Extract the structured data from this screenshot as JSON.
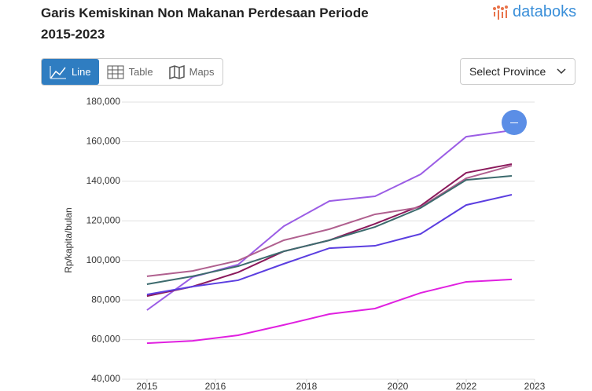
{
  "ui": {
    "tabs": [
      "Line",
      "Table",
      "Maps"
    ],
    "select": "Select Province",
    "logo": "databoks"
  },
  "chart_data": {
    "type": "line",
    "title": "Garis Kemiskinan Non Makanan Perdesaan Periode 2015-2023",
    "y_label": "Rp/kapita/bulan",
    "categories": [
      null,
      null,
      null,
      null,
      null,
      null,
      null,
      null,
      null
    ],
    "xlim": [
      -0.55,
      8.5
    ],
    "xticks": [
      {
        "value": 0,
        "label": "2015"
      },
      {
        "value": 1.5,
        "label": "2016"
      },
      {
        "value": 3.5,
        "label": "2018"
      },
      {
        "value": 5.5,
        "label": "2020"
      },
      {
        "value": 7,
        "label": "2022"
      },
      {
        "value": 8.5,
        "label": "2023"
      }
    ],
    "ylim": [
      40000,
      180000
    ],
    "yticks": [
      {
        "value": 40000,
        "label": "40,000"
      },
      {
        "value": 60000,
        "label": "60,000"
      },
      {
        "value": 80000,
        "label": "80,000"
      },
      {
        "value": 100000,
        "label": "100,000"
      },
      {
        "value": 120000,
        "label": "120,000"
      },
      {
        "value": 140000,
        "label": "140,000"
      },
      {
        "value": 160000,
        "label": "160,000"
      },
      {
        "value": 180000,
        "label": "180,000"
      }
    ],
    "grid": true,
    "series": [
      {
        "color": "#9b5de5",
        "values": [
          74900,
          91600,
          97900,
          117300,
          130000,
          132400,
          143500,
          162500,
          165700
        ]
      },
      {
        "color": "#8b1a5c",
        "values": [
          82000,
          86800,
          94000,
          104600,
          110200,
          118500,
          127600,
          144300,
          148700
        ]
      },
      {
        "color": "#b0608f",
        "values": [
          92000,
          94700,
          99900,
          110200,
          115800,
          123300,
          126900,
          141500,
          147900
        ]
      },
      {
        "color": "#3d6b6e",
        "values": [
          88000,
          92000,
          97100,
          104600,
          110200,
          116900,
          126500,
          140700,
          142700
        ]
      },
      {
        "color": "#5b3ee0",
        "values": [
          82800,
          86800,
          90000,
          98300,
          106200,
          107400,
          113400,
          128000,
          133200
        ]
      },
      {
        "color": "#e020e0",
        "values": [
          58200,
          59400,
          62200,
          67400,
          72900,
          75700,
          83600,
          89200,
          90400
        ]
      }
    ]
  }
}
